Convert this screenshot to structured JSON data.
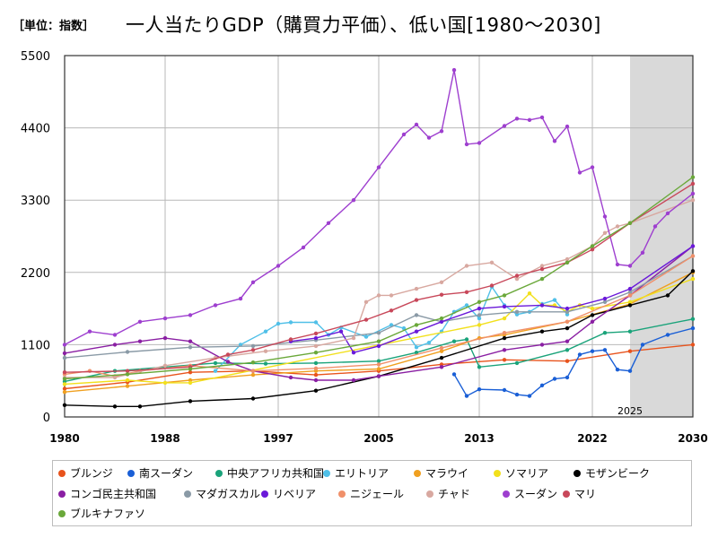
{
  "title": {
    "unit": "［単位：指数］",
    "main": "一人当たりGDP（購買力平価）、低い国[1980〜2030]"
  },
  "chart_data": {
    "type": "line",
    "x_ticks": [
      1980,
      1988,
      1997,
      2005,
      2013,
      2022,
      2030
    ],
    "y_ticks": [
      0,
      1100,
      2200,
      3300,
      4400,
      5500
    ],
    "xlim": [
      1980,
      2030
    ],
    "ylim": [
      0,
      5500
    ],
    "grid": true,
    "forecast_start": 2025,
    "forecast_label": "2025",
    "legend_position": "bottom",
    "series": [
      {
        "name": "ブルンジ",
        "color": "#e8531c",
        "points": [
          [
            1980,
            430
          ],
          [
            1985,
            530
          ],
          [
            1990,
            680
          ],
          [
            1995,
            700
          ],
          [
            2000,
            640
          ],
          [
            2005,
            700
          ],
          [
            2010,
            800
          ],
          [
            2015,
            870
          ],
          [
            2020,
            850
          ],
          [
            2025,
            1000
          ],
          [
            2030,
            1100
          ]
        ]
      },
      {
        "name": "南スーダン",
        "color": "#1a5fd6",
        "points": [
          [
            2011,
            650
          ],
          [
            2012,
            320
          ],
          [
            2013,
            420
          ],
          [
            2015,
            410
          ],
          [
            2016,
            340
          ],
          [
            2017,
            320
          ],
          [
            2018,
            480
          ],
          [
            2019,
            580
          ],
          [
            2020,
            600
          ],
          [
            2021,
            950
          ],
          [
            2022,
            1000
          ],
          [
            2023,
            1020
          ],
          [
            2024,
            720
          ],
          [
            2025,
            700
          ],
          [
            2026,
            1100
          ],
          [
            2028,
            1250
          ],
          [
            2030,
            1350
          ]
        ]
      },
      {
        "name": "中央アフリカ共和国",
        "color": "#1aa37a",
        "points": [
          [
            1980,
            540
          ],
          [
            1984,
            700
          ],
          [
            1988,
            760
          ],
          [
            1992,
            820
          ],
          [
            1996,
            810
          ],
          [
            2000,
            820
          ],
          [
            2005,
            850
          ],
          [
            2008,
            980
          ],
          [
            2011,
            1150
          ],
          [
            2012,
            1180
          ],
          [
            2013,
            760
          ],
          [
            2016,
            820
          ],
          [
            2020,
            1020
          ],
          [
            2023,
            1280
          ],
          [
            2025,
            1300
          ],
          [
            2030,
            1490
          ]
        ]
      },
      {
        "name": "エリトリア",
        "color": "#50c0e8",
        "points": [
          [
            1992,
            700
          ],
          [
            1994,
            1100
          ],
          [
            1996,
            1300
          ],
          [
            1997,
            1420
          ],
          [
            1998,
            1440
          ],
          [
            2000,
            1440
          ],
          [
            2001,
            1250
          ],
          [
            2002,
            1360
          ],
          [
            2004,
            1220
          ],
          [
            2006,
            1400
          ],
          [
            2007,
            1350
          ],
          [
            2008,
            1060
          ],
          [
            2009,
            1130
          ],
          [
            2010,
            1300
          ],
          [
            2011,
            1600
          ],
          [
            2012,
            1700
          ],
          [
            2013,
            1500
          ],
          [
            2014,
            1980
          ],
          [
            2015,
            1700
          ],
          [
            2016,
            1560
          ],
          [
            2017,
            1600
          ],
          [
            2018,
            1720
          ],
          [
            2019,
            1780
          ],
          [
            2020,
            1560
          ]
        ]
      },
      {
        "name": "マラウイ",
        "color": "#f0a020",
        "points": [
          [
            1980,
            380
          ],
          [
            1985,
            470
          ],
          [
            1990,
            560
          ],
          [
            1995,
            640
          ],
          [
            2000,
            700
          ],
          [
            2005,
            730
          ],
          [
            2010,
            1000
          ],
          [
            2013,
            1200
          ],
          [
            2015,
            1250
          ],
          [
            2020,
            1450
          ],
          [
            2025,
            1720
          ],
          [
            2030,
            2200
          ]
        ]
      },
      {
        "name": "ソマリア",
        "color": "#f2e01c",
        "points": [
          [
            1980,
            500
          ],
          [
            1985,
            560
          ],
          [
            1988,
            520
          ],
          [
            1990,
            520
          ],
          [
            2013,
            1400
          ],
          [
            2015,
            1500
          ],
          [
            2017,
            1880
          ],
          [
            2018,
            1700
          ],
          [
            2019,
            1700
          ],
          [
            2020,
            1600
          ],
          [
            2021,
            1700
          ],
          [
            2022,
            1650
          ],
          [
            2025,
            1750
          ],
          [
            2030,
            2100
          ]
        ]
      },
      {
        "name": "モザンビーク",
        "color": "#000000",
        "points": [
          [
            1980,
            180
          ],
          [
            1984,
            160
          ],
          [
            1986,
            160
          ],
          [
            1990,
            240
          ],
          [
            1995,
            280
          ],
          [
            2000,
            400
          ],
          [
            2005,
            620
          ],
          [
            2010,
            900
          ],
          [
            2015,
            1200
          ],
          [
            2018,
            1300
          ],
          [
            2020,
            1350
          ],
          [
            2022,
            1550
          ],
          [
            2025,
            1700
          ],
          [
            2028,
            1850
          ],
          [
            2030,
            2220
          ]
        ]
      },
      {
        "name": "コンゴ民主共和国",
        "color": "#8a1fa3",
        "points": [
          [
            1980,
            970
          ],
          [
            1984,
            1100
          ],
          [
            1986,
            1150
          ],
          [
            1988,
            1200
          ],
          [
            1990,
            1150
          ],
          [
            1993,
            840
          ],
          [
            1995,
            700
          ],
          [
            1998,
            600
          ],
          [
            2000,
            560
          ],
          [
            2003,
            560
          ],
          [
            2005,
            620
          ],
          [
            2010,
            760
          ],
          [
            2015,
            1020
          ],
          [
            2018,
            1100
          ],
          [
            2020,
            1150
          ],
          [
            2022,
            1450
          ],
          [
            2025,
            1850
          ],
          [
            2030,
            2600
          ]
        ]
      },
      {
        "name": "マダガスカル",
        "color": "#8a9aa6",
        "points": [
          [
            1980,
            900
          ],
          [
            1985,
            990
          ],
          [
            1990,
            1060
          ],
          [
            1995,
            1080
          ],
          [
            2000,
            1170
          ],
          [
            2005,
            1280
          ],
          [
            2008,
            1550
          ],
          [
            2010,
            1450
          ],
          [
            2013,
            1550
          ],
          [
            2016,
            1600
          ],
          [
            2020,
            1600
          ],
          [
            2023,
            1750
          ],
          [
            2025,
            1900
          ],
          [
            2030,
            2450
          ]
        ]
      },
      {
        "name": "リベリア",
        "color": "#6a19d9",
        "points": [
          [
            1998,
            1150
          ],
          [
            2000,
            1200
          ],
          [
            2002,
            1300
          ],
          [
            2003,
            980
          ],
          [
            2005,
            1080
          ],
          [
            2008,
            1300
          ],
          [
            2010,
            1450
          ],
          [
            2013,
            1650
          ],
          [
            2015,
            1680
          ],
          [
            2018,
            1700
          ],
          [
            2020,
            1650
          ],
          [
            2023,
            1800
          ],
          [
            2025,
            1950
          ],
          [
            2030,
            2600
          ]
        ]
      },
      {
        "name": "ニジェール",
        "color": "#f0906a",
        "points": [
          [
            1980,
            650
          ],
          [
            1982,
            700
          ],
          [
            1984,
            620
          ],
          [
            1986,
            700
          ],
          [
            1990,
            780
          ],
          [
            1995,
            700
          ],
          [
            2000,
            740
          ],
          [
            2005,
            800
          ],
          [
            2010,
            1050
          ],
          [
            2015,
            1280
          ],
          [
            2020,
            1450
          ],
          [
            2025,
            1850
          ],
          [
            2030,
            2450
          ]
        ]
      },
      {
        "name": "チャド",
        "color": "#d8a8a0",
        "points": [
          [
            1980,
            600
          ],
          [
            1984,
            600
          ],
          [
            1988,
            780
          ],
          [
            1992,
            900
          ],
          [
            1996,
            1000
          ],
          [
            2000,
            1080
          ],
          [
            2003,
            1200
          ],
          [
            2004,
            1750
          ],
          [
            2005,
            1850
          ],
          [
            2006,
            1850
          ],
          [
            2008,
            1950
          ],
          [
            2010,
            2050
          ],
          [
            2012,
            2300
          ],
          [
            2014,
            2350
          ],
          [
            2016,
            2100
          ],
          [
            2018,
            2300
          ],
          [
            2020,
            2400
          ],
          [
            2022,
            2600
          ],
          [
            2023,
            2800
          ],
          [
            2024,
            2900
          ],
          [
            2025,
            2950
          ],
          [
            2030,
            3300
          ]
        ]
      },
      {
        "name": "スーダン",
        "color": "#9e3fcf",
        "points": [
          [
            1980,
            1100
          ],
          [
            1982,
            1300
          ],
          [
            1984,
            1250
          ],
          [
            1986,
            1450
          ],
          [
            1988,
            1500
          ],
          [
            1990,
            1550
          ],
          [
            1992,
            1700
          ],
          [
            1994,
            1800
          ],
          [
            1995,
            2050
          ],
          [
            1997,
            2300
          ],
          [
            1999,
            2580
          ],
          [
            2001,
            2950
          ],
          [
            2003,
            3300
          ],
          [
            2005,
            3800
          ],
          [
            2007,
            4300
          ],
          [
            2008,
            4450
          ],
          [
            2009,
            4250
          ],
          [
            2010,
            4350
          ],
          [
            2011,
            5280
          ],
          [
            2012,
            4150
          ],
          [
            2013,
            4170
          ],
          [
            2015,
            4430
          ],
          [
            2016,
            4540
          ],
          [
            2017,
            4520
          ],
          [
            2018,
            4560
          ],
          [
            2019,
            4200
          ],
          [
            2020,
            4420
          ],
          [
            2021,
            3720
          ],
          [
            2022,
            3800
          ],
          [
            2023,
            3050
          ],
          [
            2024,
            2320
          ],
          [
            2025,
            2300
          ],
          [
            2026,
            2500
          ],
          [
            2027,
            2900
          ],
          [
            2028,
            3100
          ],
          [
            2030,
            3400
          ]
        ]
      },
      {
        "name": "マリ",
        "color": "#c8485a",
        "points": [
          [
            1980,
            680
          ],
          [
            1985,
            700
          ],
          [
            1990,
            760
          ],
          [
            1993,
            950
          ],
          [
            1995,
            1020
          ],
          [
            1998,
            1180
          ],
          [
            2000,
            1270
          ],
          [
            2004,
            1480
          ],
          [
            2006,
            1620
          ],
          [
            2008,
            1780
          ],
          [
            2010,
            1860
          ],
          [
            2012,
            1900
          ],
          [
            2014,
            2000
          ],
          [
            2016,
            2150
          ],
          [
            2018,
            2250
          ],
          [
            2020,
            2350
          ],
          [
            2022,
            2550
          ],
          [
            2025,
            2950
          ],
          [
            2030,
            3550
          ]
        ]
      },
      {
        "name": "ブルキナファソ",
        "color": "#6aa83a",
        "points": [
          [
            1980,
            580
          ],
          [
            1985,
            650
          ],
          [
            1990,
            730
          ],
          [
            1995,
            830
          ],
          [
            2000,
            980
          ],
          [
            2005,
            1150
          ],
          [
            2008,
            1400
          ],
          [
            2010,
            1500
          ],
          [
            2013,
            1750
          ],
          [
            2015,
            1850
          ],
          [
            2018,
            2100
          ],
          [
            2020,
            2350
          ],
          [
            2022,
            2600
          ],
          [
            2025,
            2950
          ],
          [
            2030,
            3650
          ]
        ]
      }
    ]
  }
}
